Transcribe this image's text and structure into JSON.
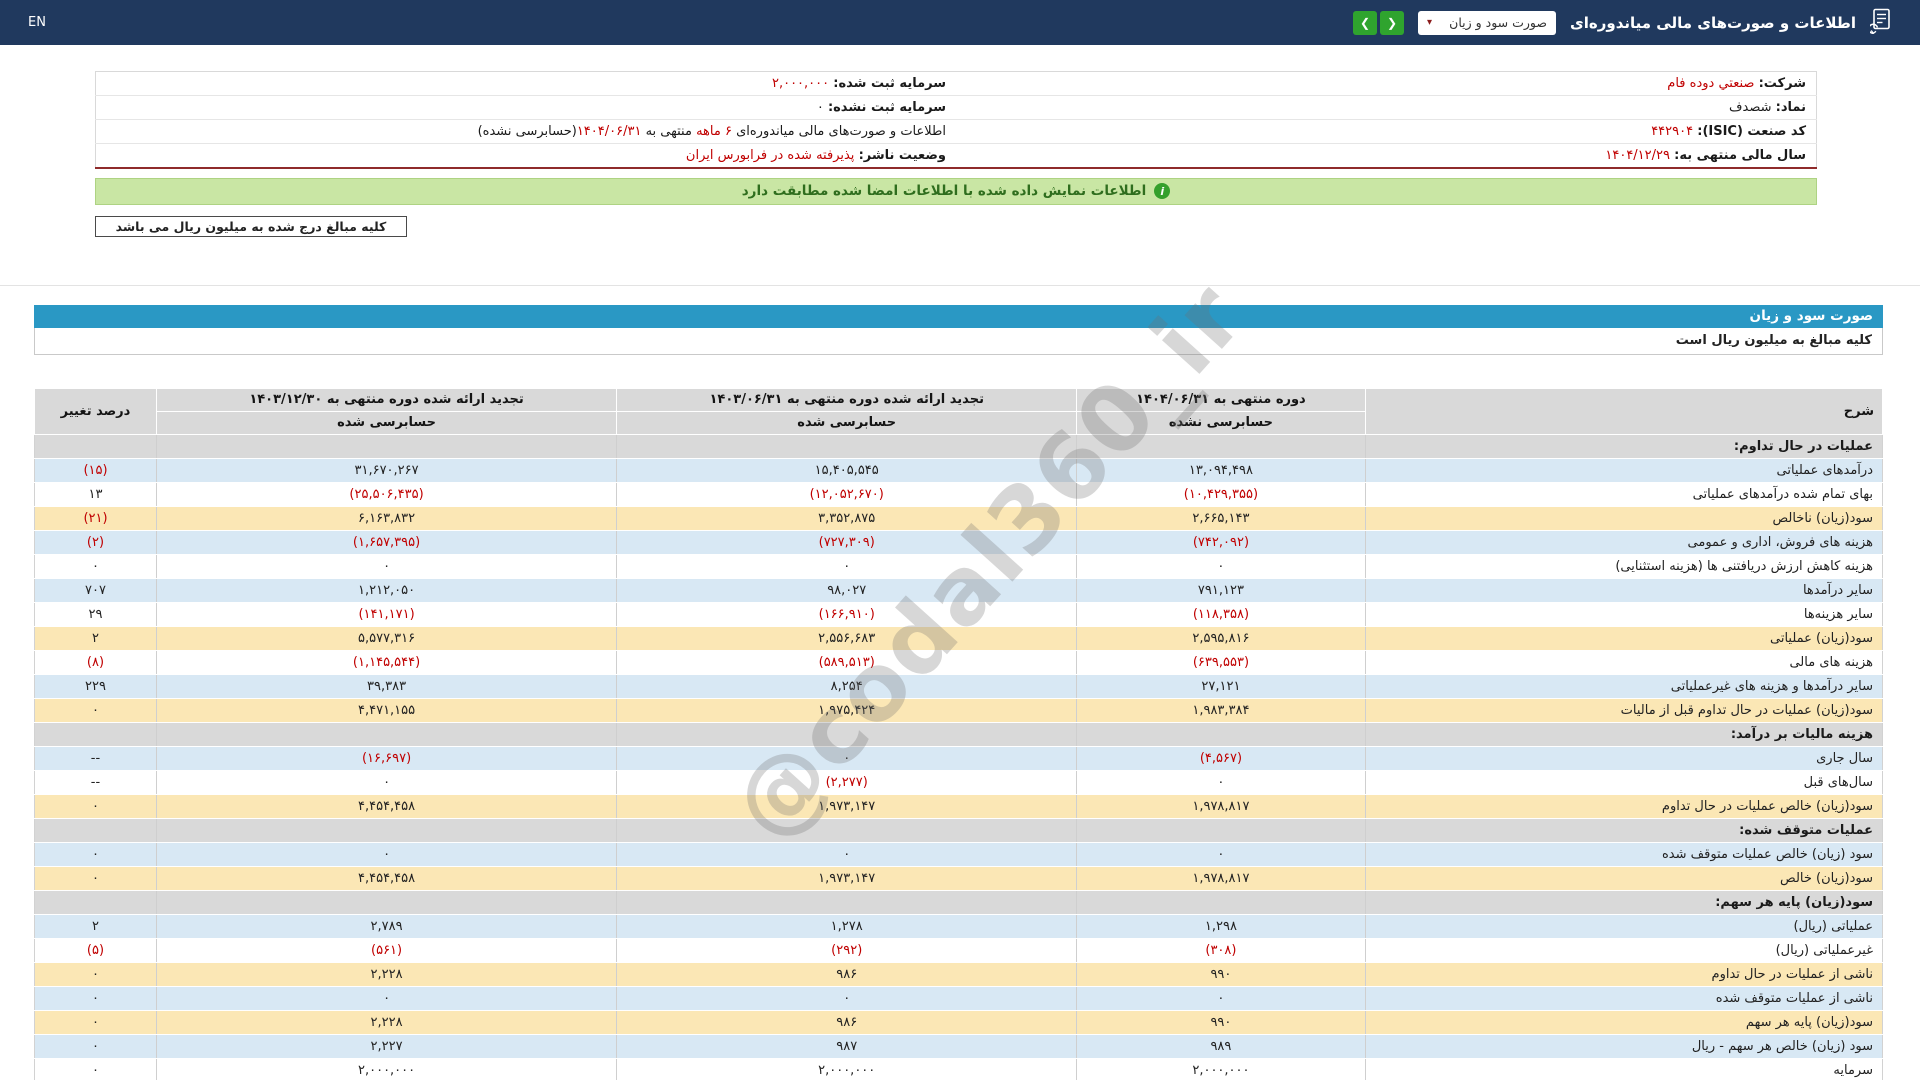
{
  "topbar": {
    "title": "اطلاعات و صورت‌های مالی میاندوره‌ای",
    "dropdown": {
      "value": "صورت سود و زیان",
      "caret": "▾"
    },
    "nav": {
      "prev": "❮",
      "next": "❯"
    },
    "lang_link": "EN"
  },
  "company_info": {
    "r1_label": "شرکت:",
    "r1_value": "صنعتي دوده فام",
    "l1_label": "سرمایه ثبت شده:",
    "l1_value": "۲,۰۰۰,۰۰۰",
    "r2_label": "نماد:",
    "r2_value": "شصدف",
    "l2_label": "سرمایه ثبت نشده:",
    "l2_value": "۰",
    "r3_label": "کد صنعت (ISIC):",
    "r3_value": "۴۴۲۹۰۴",
    "l3_part1": "اطلاعات و صورت‌های مالی میاندوره‌ای ",
    "l3_part2": "۶ ماهه",
    "l3_part3": " منتهی به ",
    "l3_part4": "۱۴۰۴/۰۶/۳۱",
    "l3_part5": "(حسابرسی نشده)",
    "r4_label": "سال مالی منتهی به:",
    "r4_value": "۱۴۰۴/۱۲/۲۹",
    "l4_label": "وضعیت ناشر:",
    "l4_value": "پذیرفته شده در فرابورس ایران"
  },
  "banner": {
    "icon_text": "i",
    "text": "اطلاعات نمایش داده شده با اطلاعات امضا شده مطابقت دارد"
  },
  "notes": {
    "amounts_box": "کلیه مبالغ درج شده به میلیون ریال می باشد"
  },
  "watermark": "@codal360_ir",
  "statement": {
    "section_title": "صورت سود و زیان",
    "unit_note": "کلیه مبالغ به میلیون ریال است",
    "columns": {
      "desc": "شرح",
      "p1": "دوره منتهی به ۱۴۰۴/۰۶/۳۱",
      "p1_sub": "حسابرسی نشده",
      "p2": "تجدید ارائه شده دوره منتهی به ۱۴۰۳/۰۶/۳۱",
      "p2_sub": "حسابرسی شده",
      "p3": "تجدید ارائه شده دوره منتهی به ۱۴۰۳/۱۲/۳۰",
      "p3_sub": "حسابرسی شده",
      "change": "درصد تغییر"
    },
    "rows": [
      {
        "type": "section",
        "desc": "عملیات در حال تداوم:"
      },
      {
        "type": "data",
        "bg": "blue",
        "desc": "درآمدهای عملیاتی",
        "p1": "۱۳,۰۹۴,۴۹۸",
        "p2": "۱۵,۴۰۵,۵۴۵",
        "p3": "۳۱,۶۷۰,۲۶۷",
        "change": "(۱۵)"
      },
      {
        "type": "data",
        "bg": "white",
        "desc": "بهای تمام شده درآمدهای عملیاتی",
        "p1": "(۱۰,۴۲۹,۳۵۵)",
        "p2": "(۱۲,۰۵۲,۶۷۰)",
        "p3": "(۲۵,۵۰۶,۴۳۵)",
        "change": "۱۳"
      },
      {
        "type": "data",
        "bg": "yellow",
        "desc": "سود(زیان) ناخالص",
        "p1": "۲,۶۶۵,۱۴۳",
        "p2": "۳,۳۵۲,۸۷۵",
        "p3": "۶,۱۶۳,۸۳۲",
        "change": "(۲۱)"
      },
      {
        "type": "data",
        "bg": "blue",
        "desc": "هزینه های فروش، اداری و عمومی",
        "p1": "(۷۴۲,۰۹۲)",
        "p2": "(۷۲۷,۳۰۹)",
        "p3": "(۱,۶۵۷,۳۹۵)",
        "change": "(۲)"
      },
      {
        "type": "data",
        "bg": "white",
        "desc": "هزینه کاهش ارزش دریافتنی ها (هزینه استثنایی)",
        "p1": "۰",
        "p2": "۰",
        "p3": "۰",
        "change": "۰"
      },
      {
        "type": "data",
        "bg": "blue",
        "desc": "سایر درآمدها",
        "p1": "۷۹۱,۱۲۳",
        "p2": "۹۸,۰۲۷",
        "p3": "۱,۲۱۲,۰۵۰",
        "change": "۷۰۷"
      },
      {
        "type": "data",
        "bg": "white",
        "desc": "سایر هزینه‌ها",
        "p1": "(۱۱۸,۳۵۸)",
        "p2": "(۱۶۶,۹۱۰)",
        "p3": "(۱۴۱,۱۷۱)",
        "change": "۲۹"
      },
      {
        "type": "data",
        "bg": "yellow",
        "desc": "سود(زیان) عملیاتی",
        "p1": "۲,۵۹۵,۸۱۶",
        "p2": "۲,۵۵۶,۶۸۳",
        "p3": "۵,۵۷۷,۳۱۶",
        "change": "۲"
      },
      {
        "type": "data",
        "bg": "white",
        "desc": "هزینه های مالی",
        "p1": "(۶۳۹,۵۵۳)",
        "p2": "(۵۸۹,۵۱۳)",
        "p3": "(۱,۱۴۵,۵۴۴)",
        "change": "(۸)"
      },
      {
        "type": "data",
        "bg": "blue",
        "desc": "سایر درآمدها و هزینه های غیرعملیاتی",
        "p1": "۲۷,۱۲۱",
        "p2": "۸,۲۵۴",
        "p3": "۳۹,۳۸۳",
        "change": "۲۲۹"
      },
      {
        "type": "data",
        "bg": "yellow",
        "desc": "سود(زیان) عملیات در حال تداوم قبل از مالیات",
        "p1": "۱,۹۸۳,۳۸۴",
        "p2": "۱,۹۷۵,۴۲۴",
        "p3": "۴,۴۷۱,۱۵۵",
        "change": "۰"
      },
      {
        "type": "section",
        "desc": "هزینه مالیات بر درآمد:"
      },
      {
        "type": "data",
        "bg": "blue",
        "desc": "سال جاری",
        "p1": "(۴,۵۶۷)",
        "p2": "۰",
        "p3": "(۱۶,۶۹۷)",
        "change": "--"
      },
      {
        "type": "data",
        "bg": "white",
        "desc": "سال‌های قبل",
        "p1": "۰",
        "p2": "(۲,۲۷۷)",
        "p3": "۰",
        "change": "--"
      },
      {
        "type": "data",
        "bg": "yellow",
        "desc": "سود(زیان) خالص عملیات در حال تداوم",
        "p1": "۱,۹۷۸,۸۱۷",
        "p2": "۱,۹۷۳,۱۴۷",
        "p3": "۴,۴۵۴,۴۵۸",
        "change": "۰"
      },
      {
        "type": "section",
        "desc": "عملیات متوقف شده:"
      },
      {
        "type": "data",
        "bg": "blue",
        "desc": "سود (زیان) خالص عملیات متوقف شده",
        "p1": "۰",
        "p2": "۰",
        "p3": "۰",
        "change": "۰"
      },
      {
        "type": "data",
        "bg": "yellow",
        "desc": "سود(زیان) خالص",
        "p1": "۱,۹۷۸,۸۱۷",
        "p2": "۱,۹۷۳,۱۴۷",
        "p3": "۴,۴۵۴,۴۵۸",
        "change": "۰"
      },
      {
        "type": "section",
        "desc": "سود(زیان) پایه هر سهم:"
      },
      {
        "type": "data",
        "bg": "blue",
        "desc": "عملیاتی (ریال)",
        "p1": "۱,۲۹۸",
        "p2": "۱,۲۷۸",
        "p3": "۲,۷۸۹",
        "change": "۲"
      },
      {
        "type": "data",
        "bg": "white",
        "desc": "غیرعملیاتی (ریال)",
        "p1": "(۳۰۸)",
        "p2": "(۲۹۲)",
        "p3": "(۵۶۱)",
        "change": "(۵)"
      },
      {
        "type": "data",
        "bg": "yellow",
        "desc": "ناشی از عملیات در حال تداوم",
        "p1": "۹۹۰",
        "p2": "۹۸۶",
        "p3": "۲,۲۲۸",
        "change": "۰"
      },
      {
        "type": "data",
        "bg": "blue",
        "desc": "ناشی از عملیات متوقف شده",
        "p1": "۰",
        "p2": "۰",
        "p3": "۰",
        "change": "۰"
      },
      {
        "type": "data",
        "bg": "yellow",
        "desc": "سود(زیان) پایه هر سهم",
        "p1": "۹۹۰",
        "p2": "۹۸۶",
        "p3": "۲,۲۲۸",
        "change": "۰"
      },
      {
        "type": "data",
        "bg": "blue",
        "desc": "سود (زیان) خالص هر سهم - ریال",
        "p1": "۹۸۹",
        "p2": "۹۸۷",
        "p3": "۲,۲۲۷",
        "change": "۰"
      },
      {
        "type": "data",
        "bg": "white",
        "desc": "سرمایه",
        "p1": "۲,۰۰۰,۰۰۰",
        "p2": "۲,۰۰۰,۰۰۰",
        "p3": "۲,۰۰۰,۰۰۰",
        "change": "۰"
      }
    ]
  },
  "colors": {
    "topbar_bg": "#20395e",
    "accent_teal": "#2a98c4",
    "nav_green": "#2fa42e",
    "banner_bg": "#c9e6a4",
    "negative_red": "#c00000",
    "row_blue": "#d8e8f4",
    "row_yellow": "#fbe7b5",
    "section_gray": "#d9d9d9",
    "info_border_red": "#8f2b2b"
  }
}
